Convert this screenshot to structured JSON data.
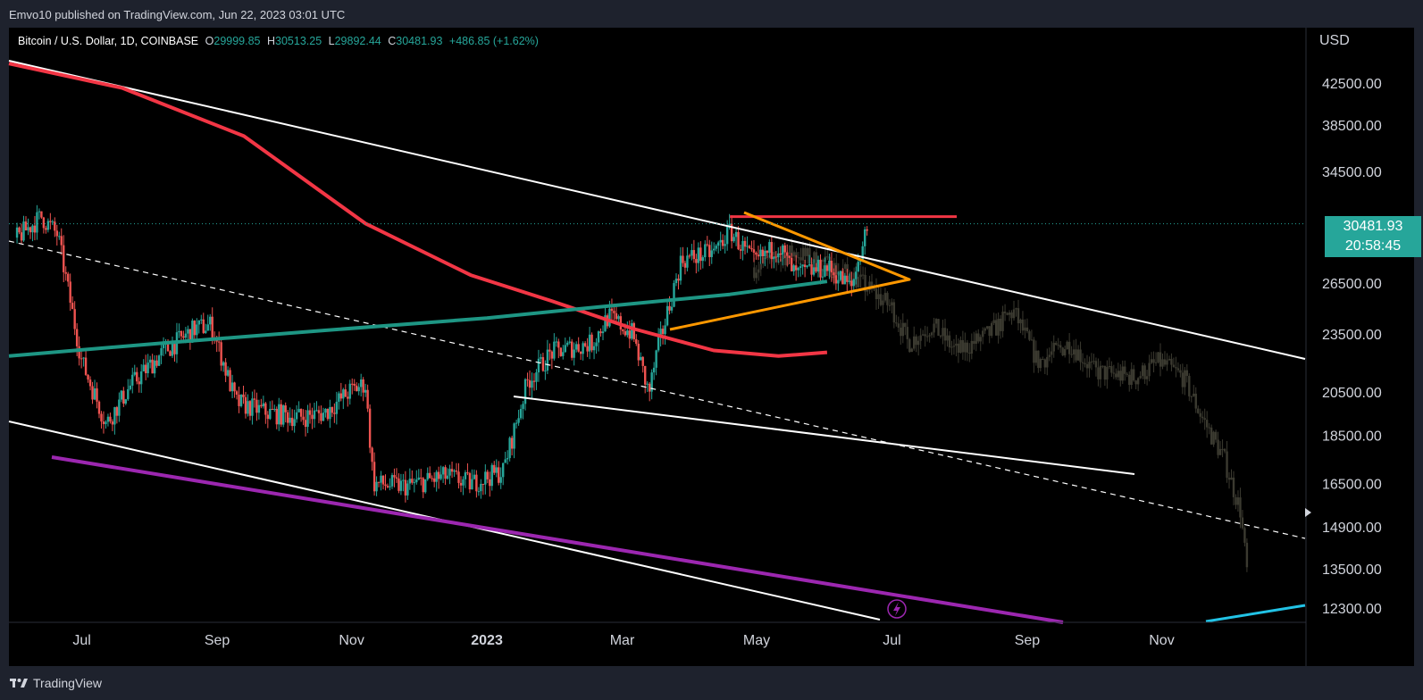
{
  "header": {
    "published_text": "Emvo10 published on TradingView.com, Jun 22, 2023 03:01 UTC"
  },
  "legend": {
    "symbol": "Bitcoin / U.S. Dollar, 1D, COINBASE",
    "open_label": "O",
    "open": "29999.85",
    "high_label": "H",
    "high": "30513.25",
    "low_label": "L",
    "low": "29892.44",
    "close_label": "C",
    "close": "30481.93",
    "change": "+486.85 (+1.62%)"
  },
  "price_axis": {
    "currency": "USD"
  },
  "price_tag": {
    "price": "30481.93",
    "countdown": "20:58:45"
  },
  "branding": {
    "name": "TradingView"
  },
  "colors": {
    "up": "#26a69a",
    "down": "#ef5350",
    "red_ma": "#f23645",
    "teal_ma": "#1e9684",
    "orange": "#ff9800",
    "purple": "#9c27b0",
    "cyan": "#22c3e6",
    "resistance": "#f23645"
  },
  "chart_data": {
    "type": "candlestick",
    "title": "Bitcoin / U.S. Dollar, 1D, COINBASE",
    "x_tick_labels": [
      "Jul",
      "Sep",
      "Nov",
      "2023",
      "Mar",
      "May",
      "Jul",
      "Sep",
      "Nov"
    ],
    "y_tick_labels": [
      "42500.00",
      "38500.00",
      "34500.00",
      "26500.00",
      "23500.00",
      "20500.00",
      "18500.00",
      "16500.00",
      "14900.00",
      "13500.00",
      "12300.00"
    ],
    "y_ticks": [
      42500,
      38500,
      34500,
      26500,
      23500,
      20500,
      18500,
      16500,
      14900,
      13500,
      12300
    ],
    "y_scale": "log",
    "last_price": 30481.93,
    "price_path_points": [
      [
        2022.42,
        29500
      ],
      [
        2022.45,
        31000
      ],
      [
        2022.47,
        29700
      ],
      [
        2022.5,
        22000
      ],
      [
        2022.53,
        19000
      ],
      [
        2022.56,
        20800
      ],
      [
        2022.6,
        22500
      ],
      [
        2022.64,
        23800
      ],
      [
        2022.66,
        24000
      ],
      [
        2022.69,
        20000
      ],
      [
        2022.73,
        19500
      ],
      [
        2022.77,
        19300
      ],
      [
        2022.8,
        19500
      ],
      [
        2022.83,
        20500
      ],
      [
        2022.85,
        20900
      ],
      [
        2022.86,
        16500
      ],
      [
        2022.9,
        16400
      ],
      [
        2022.95,
        16800
      ],
      [
        2022.98,
        16500
      ],
      [
        2023.02,
        17000
      ],
      [
        2023.05,
        21000
      ],
      [
        2023.08,
        22500
      ],
      [
        2023.13,
        23000
      ],
      [
        2023.15,
        24500
      ],
      [
        2023.18,
        23500
      ],
      [
        2023.2,
        20400
      ],
      [
        2023.21,
        22500
      ],
      [
        2023.24,
        28000
      ],
      [
        2023.28,
        28500
      ],
      [
        2023.3,
        30000
      ],
      [
        2023.33,
        27800
      ],
      [
        2023.36,
        29000
      ],
      [
        2023.38,
        27000
      ],
      [
        2023.42,
        27500
      ],
      [
        2023.45,
        26200
      ],
      [
        2023.47,
        30481
      ]
    ],
    "ghost_path_points": [
      [
        2023.33,
        27500
      ],
      [
        2023.38,
        28500
      ],
      [
        2023.45,
        27000
      ],
      [
        2023.5,
        25000
      ],
      [
        2023.52,
        23000
      ],
      [
        2023.55,
        24000
      ],
      [
        2023.58,
        22500
      ],
      [
        2023.62,
        23500
      ],
      [
        2023.65,
        24800
      ],
      [
        2023.68,
        22000
      ],
      [
        2023.72,
        23000
      ],
      [
        2023.75,
        21500
      ],
      [
        2023.8,
        21200
      ],
      [
        2023.83,
        22000
      ],
      [
        2023.86,
        21200
      ],
      [
        2023.88,
        19500
      ],
      [
        2023.91,
        17500
      ],
      [
        2023.93,
        15500
      ],
      [
        2023.94,
        13000
      ]
    ],
    "red_ma": [
      [
        2022.41,
        44500
      ],
      [
        2022.55,
        42000
      ],
      [
        2022.7,
        37500
      ],
      [
        2022.85,
        30500
      ],
      [
        2022.98,
        27000
      ],
      [
        2023.08,
        25400
      ],
      [
        2023.18,
        23800
      ],
      [
        2023.28,
        22600
      ],
      [
        2023.36,
        22300
      ],
      [
        2023.42,
        22500
      ]
    ],
    "teal_ma": [
      [
        2022.41,
        22300
      ],
      [
        2022.6,
        23000
      ],
      [
        2022.8,
        23700
      ],
      [
        2023.0,
        24400
      ],
      [
        2023.15,
        25100
      ],
      [
        2023.3,
        25800
      ],
      [
        2023.42,
        26600
      ]
    ],
    "resistance_level": {
      "price": 31000,
      "from": 2023.3,
      "to": 2023.58
    },
    "x_start": 2022.41,
    "x_end": 2024.01
  }
}
